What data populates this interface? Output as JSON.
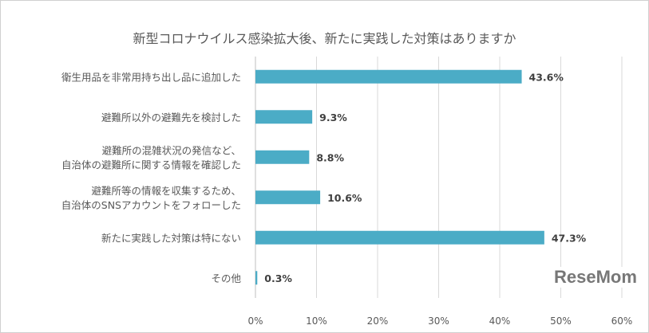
{
  "chart_data": {
    "type": "bar",
    "orientation": "horizontal",
    "title": "新型コロナウイルス感染拡大後、新たに実践した対策はありますか",
    "categories": [
      [
        "衛生用品を非常用持ち出し品に追加した"
      ],
      [
        "避難所以外の避難先を検討した"
      ],
      [
        "避難所の混雑状況の発信など、",
        "自治体の避難所に関する情報を確認した"
      ],
      [
        "避難所等の情報を収集するため、",
        "自治体のSNSアカウントをフォローした"
      ],
      [
        "新たに実践した対策は特にない"
      ],
      [
        "その他"
      ]
    ],
    "values": [
      43.6,
      9.3,
      8.8,
      10.6,
      47.3,
      0.3
    ],
    "data_labels": [
      "43.6%",
      "9.3%",
      "8.8%",
      "10.6%",
      "47.3%",
      "0.3%"
    ],
    "xlim": [
      0,
      60
    ],
    "xticks": [
      "0%",
      "10%",
      "20%",
      "30%",
      "40%",
      "50%",
      "60%"
    ],
    "grid": true,
    "bar_color": "#4BACC6"
  },
  "logo": "ReseMom"
}
